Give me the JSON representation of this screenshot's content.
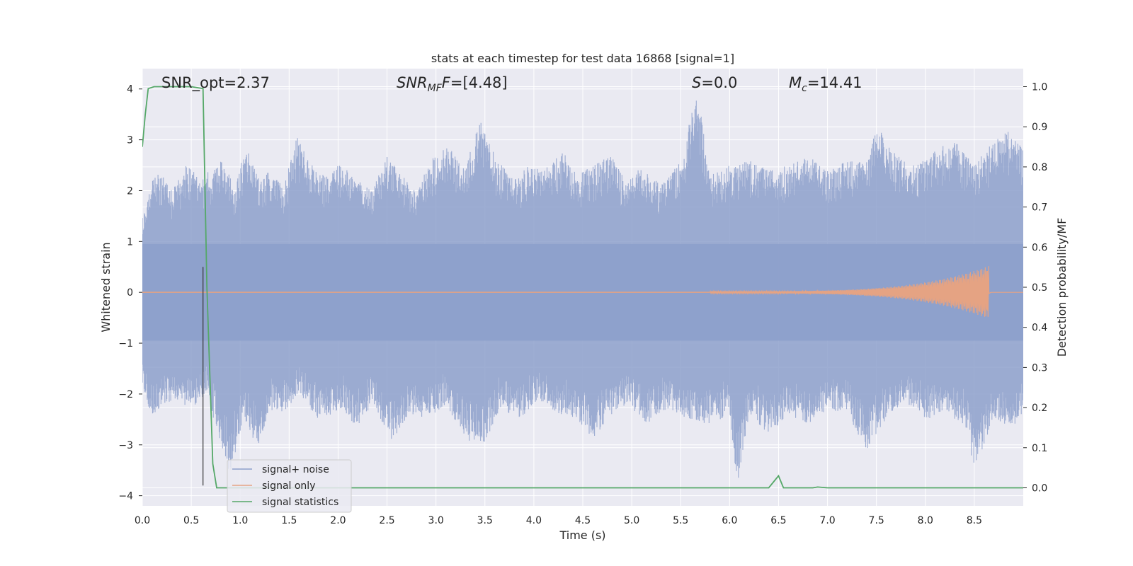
{
  "chart_data": {
    "type": "line",
    "title": "stats at each timestep for test data 16868 [signal=1]",
    "xlabel": "Time (s)",
    "ylabel_left": "Whitened strain",
    "ylabel_right": "Detection probability/MF",
    "xlim": [
      0,
      9.0
    ],
    "ylim_left": [
      -4.2,
      4.4
    ],
    "ylim_right": [
      -0.045,
      1.045
    ],
    "x_ticks": [
      "0.0",
      "0.5",
      "1.0",
      "1.5",
      "2.0",
      "2.5",
      "3.0",
      "3.5",
      "4.0",
      "4.5",
      "5.0",
      "5.5",
      "6.0",
      "6.5",
      "7.0",
      "7.5",
      "8.0",
      "8.5"
    ],
    "y_ticks_left": [
      "−4",
      "−3",
      "−2",
      "−1",
      "0",
      "1",
      "2",
      "3",
      "4"
    ],
    "y_ticks_right": [
      "0.0",
      "0.1",
      "0.2",
      "0.3",
      "0.4",
      "0.5",
      "0.6",
      "0.7",
      "0.8",
      "0.9",
      "1.0"
    ],
    "grid": true,
    "legend_position": "lower-left",
    "annotations": {
      "snr_opt": "SNR_opt=2.37",
      "snr_mf_main": "SNR",
      "snr_mf_sub": "MF",
      "snr_mf_value": "=[4.48]",
      "s_main": "S",
      "s_value": "=0.0",
      "mc_main": "M",
      "mc_sub": "c",
      "mc_value": "=14.41"
    },
    "vertical_marker_x": 0.62,
    "series": [
      {
        "name": "signal+ noise",
        "color": "#8da0cb",
        "description_type": "noise",
        "envelope_upper": [
          [
            0,
            1.5
          ],
          [
            0.1,
            2.2
          ],
          [
            0.2,
            2.4
          ],
          [
            0.3,
            2.0
          ],
          [
            0.45,
            2.5
          ],
          [
            0.6,
            2.3
          ],
          [
            0.7,
            2.4
          ],
          [
            0.8,
            2.6
          ],
          [
            0.95,
            2.1
          ],
          [
            1.05,
            2.9
          ],
          [
            1.2,
            2.2
          ],
          [
            1.3,
            2.4
          ],
          [
            1.45,
            2.1
          ],
          [
            1.58,
            3.1
          ],
          [
            1.7,
            2.6
          ],
          [
            1.85,
            2.3
          ],
          [
            2.0,
            2.6
          ],
          [
            2.2,
            2.2
          ],
          [
            2.35,
            2.0
          ],
          [
            2.5,
            2.7
          ],
          [
            2.65,
            2.3
          ],
          [
            2.8,
            2.0
          ],
          [
            2.95,
            2.6
          ],
          [
            3.1,
            2.9
          ],
          [
            3.3,
            2.5
          ],
          [
            3.45,
            3.4
          ],
          [
            3.6,
            2.7
          ],
          [
            3.8,
            2.2
          ],
          [
            3.95,
            2.5
          ],
          [
            4.1,
            2.4
          ],
          [
            4.3,
            2.8
          ],
          [
            4.45,
            2.3
          ],
          [
            4.6,
            2.5
          ],
          [
            4.8,
            2.7
          ],
          [
            4.95,
            2.2
          ],
          [
            5.1,
            2.5
          ],
          [
            5.3,
            2.1
          ],
          [
            5.5,
            2.6
          ],
          [
            5.67,
            4.0
          ],
          [
            5.8,
            2.3
          ],
          [
            6.0,
            2.5
          ],
          [
            6.2,
            2.6
          ],
          [
            6.4,
            2.4
          ],
          [
            6.6,
            2.5
          ],
          [
            6.8,
            2.7
          ],
          [
            7.0,
            2.4
          ],
          [
            7.2,
            2.6
          ],
          [
            7.4,
            2.6
          ],
          [
            7.5,
            3.3
          ],
          [
            7.7,
            2.7
          ],
          [
            7.9,
            2.5
          ],
          [
            8.1,
            2.8
          ],
          [
            8.3,
            3.0
          ],
          [
            8.5,
            2.5
          ],
          [
            8.65,
            2.9
          ],
          [
            8.85,
            3.2
          ],
          [
            9.0,
            2.8
          ]
        ],
        "envelope_lower": [
          [
            0,
            -1.8
          ],
          [
            0.1,
            -2.5
          ],
          [
            0.2,
            -2.2
          ],
          [
            0.35,
            -2.1
          ],
          [
            0.5,
            -2.3
          ],
          [
            0.65,
            -2.0
          ],
          [
            0.9,
            -3.6
          ],
          [
            1.05,
            -2.5
          ],
          [
            1.18,
            -3.1
          ],
          [
            1.3,
            -2.3
          ],
          [
            1.45,
            -2.4
          ],
          [
            1.6,
            -2.0
          ],
          [
            1.8,
            -2.5
          ],
          [
            2.05,
            -2.3
          ],
          [
            2.2,
            -2.7
          ],
          [
            2.35,
            -2.2
          ],
          [
            2.55,
            -2.9
          ],
          [
            2.75,
            -2.4
          ],
          [
            2.9,
            -2.5
          ],
          [
            3.1,
            -2.2
          ],
          [
            3.3,
            -2.9
          ],
          [
            3.5,
            -3.0
          ],
          [
            3.65,
            -2.3
          ],
          [
            3.85,
            -2.5
          ],
          [
            4.05,
            -2.1
          ],
          [
            4.25,
            -2.4
          ],
          [
            4.45,
            -2.5
          ],
          [
            4.6,
            -2.9
          ],
          [
            4.8,
            -2.4
          ],
          [
            4.95,
            -2.2
          ],
          [
            5.15,
            -2.6
          ],
          [
            5.35,
            -2.3
          ],
          [
            5.6,
            -2.5
          ],
          [
            5.8,
            -2.6
          ],
          [
            6.0,
            -2.4
          ],
          [
            6.08,
            -3.8
          ],
          [
            6.2,
            -2.4
          ],
          [
            6.4,
            -2.8
          ],
          [
            6.6,
            -2.4
          ],
          [
            6.8,
            -2.6
          ],
          [
            7.0,
            -2.3
          ],
          [
            7.2,
            -2.4
          ],
          [
            7.4,
            -3.1
          ],
          [
            7.6,
            -2.5
          ],
          [
            7.8,
            -2.2
          ],
          [
            8.0,
            -2.5
          ],
          [
            8.2,
            -2.4
          ],
          [
            8.4,
            -2.6
          ],
          [
            8.5,
            -3.5
          ],
          [
            8.7,
            -2.5
          ],
          [
            8.9,
            -2.7
          ],
          [
            9.0,
            -2.4
          ]
        ]
      },
      {
        "name": "signal only",
        "color": "#e5a383",
        "description_type": "chirp",
        "chirp_start_x": 5.8,
        "chirp_peak_x": 8.65,
        "chirp_peak_amplitude": 0.5
      },
      {
        "name": "signal statistics",
        "color": "#55a868",
        "axis": "right",
        "points": [
          [
            0.0,
            0.85
          ],
          [
            0.03,
            0.93
          ],
          [
            0.06,
            0.995
          ],
          [
            0.12,
            1.0
          ],
          [
            0.5,
            1.0
          ],
          [
            0.62,
            0.995
          ],
          [
            0.66,
            0.5
          ],
          [
            0.72,
            0.06
          ],
          [
            0.76,
            0.0
          ],
          [
            6.4,
            0.0
          ],
          [
            6.45,
            0.015
          ],
          [
            6.5,
            0.03
          ],
          [
            6.55,
            0.0
          ],
          [
            6.85,
            0.0
          ],
          [
            6.9,
            0.002
          ],
          [
            7.0,
            0.0
          ],
          [
            9.0,
            0.0
          ]
        ]
      }
    ]
  }
}
